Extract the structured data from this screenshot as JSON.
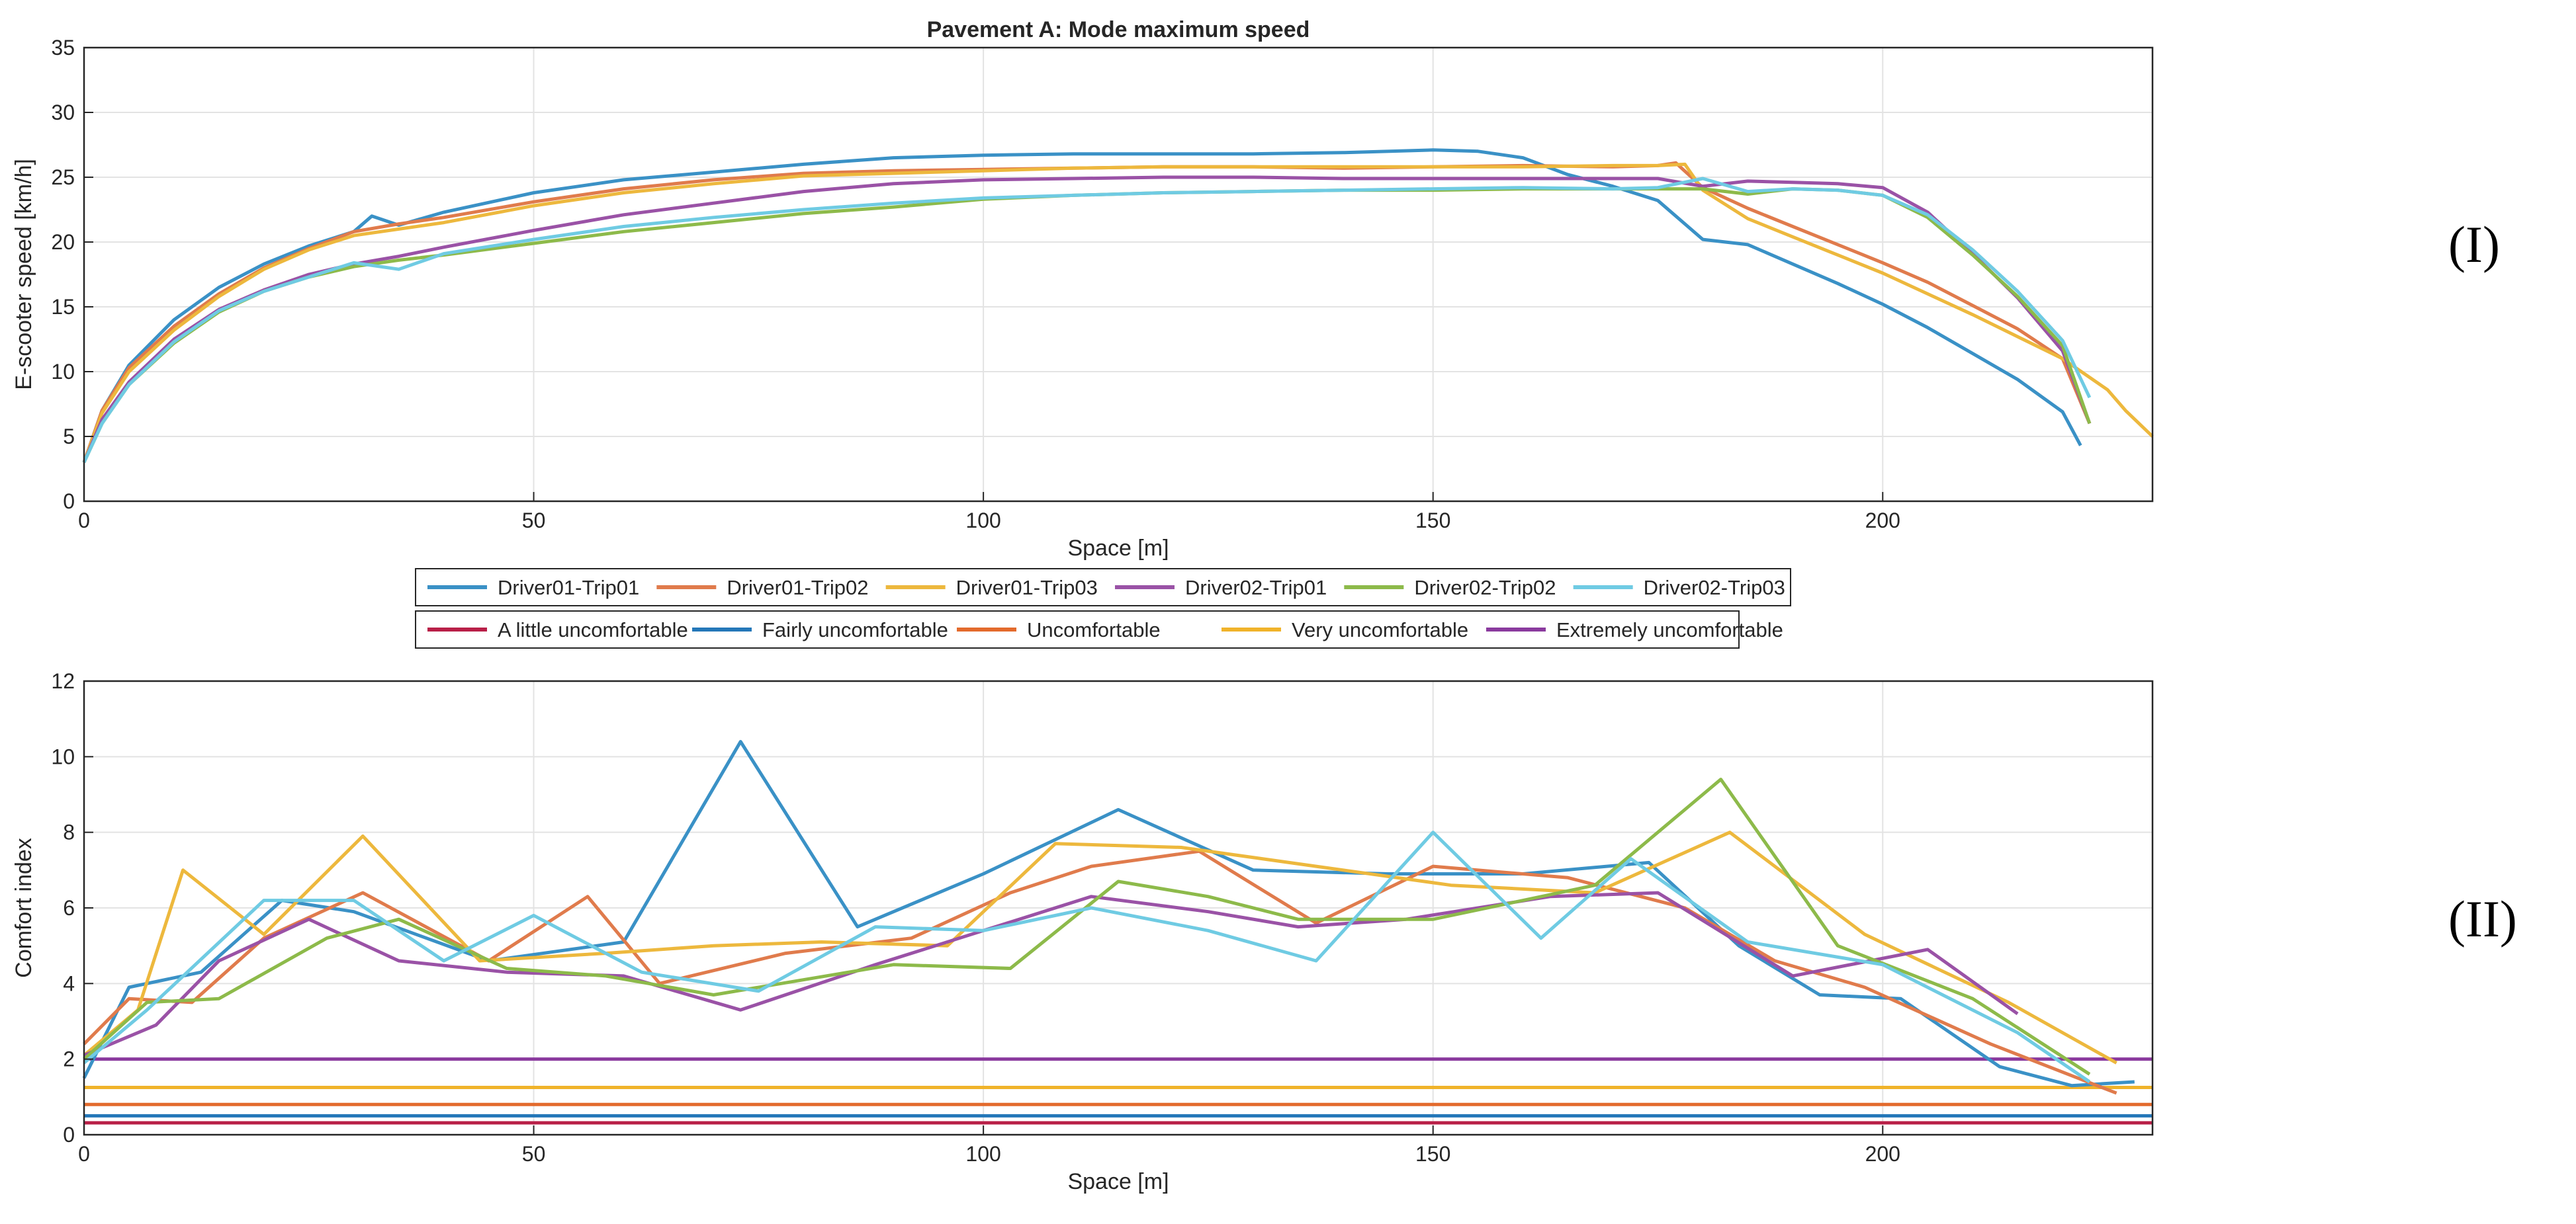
{
  "figure": {
    "label_top": "(I)",
    "label_bottom": "(II)"
  },
  "colors": {
    "d01t01": "#3a91c6",
    "d01t02": "#e07b4c",
    "d01t03": "#edb83d",
    "d02t01": "#9a52a6",
    "d02t02": "#8dba4a",
    "d02t03": "#6fcbe3",
    "a_little": "#b81f47",
    "fairly": "#2477b8",
    "uncomf": "#e36a2c",
    "very": "#f0b32a",
    "extremely": "#8a3a9e"
  },
  "legend": {
    "row1": [
      {
        "label": "Driver01-Trip01",
        "color_key": "d01t01"
      },
      {
        "label": "Driver01-Trip02",
        "color_key": "d01t02"
      },
      {
        "label": "Driver01-Trip03",
        "color_key": "d01t03"
      },
      {
        "label": "Driver02-Trip01",
        "color_key": "d02t01"
      },
      {
        "label": "Driver02-Trip02",
        "color_key": "d02t02"
      },
      {
        "label": "Driver02-Trip03",
        "color_key": "d02t03"
      }
    ],
    "row2": [
      {
        "label": "A little uncomfortable",
        "color_key": "a_little"
      },
      {
        "label": "Fairly uncomfortable",
        "color_key": "fairly"
      },
      {
        "label": "Uncomfortable",
        "color_key": "uncomf"
      },
      {
        "label": "Very uncomfortable",
        "color_key": "very"
      },
      {
        "label": "Extremely uncomfortable",
        "color_key": "extremely"
      }
    ]
  },
  "chart_data": [
    {
      "type": "line",
      "title": "Pavement A: Mode maximum speed",
      "xlabel": "Space [m]",
      "ylabel": "E-scooter speed [km/h]",
      "xlim": [
        0,
        230
      ],
      "ylim": [
        0,
        35
      ],
      "xticks": [
        0,
        50,
        100,
        150,
        200
      ],
      "yticks": [
        0,
        5,
        10,
        15,
        20,
        25,
        30,
        35
      ],
      "grid": true,
      "series": [
        {
          "name": "Driver01-Trip01",
          "color_key": "d01t01",
          "x": [
            0,
            2,
            5,
            10,
            15,
            20,
            25,
            30,
            32,
            35,
            40,
            50,
            60,
            70,
            80,
            90,
            100,
            110,
            120,
            130,
            140,
            150,
            155,
            160,
            165,
            170,
            175,
            180,
            185,
            190,
            195,
            200,
            205,
            210,
            215,
            220,
            222
          ],
          "y": [
            3,
            7,
            10.5,
            14,
            16.5,
            18.3,
            19.7,
            20.8,
            22,
            21.3,
            22.3,
            23.8,
            24.8,
            25.4,
            26,
            26.5,
            26.7,
            26.8,
            26.8,
            26.8,
            26.9,
            27.1,
            27,
            26.5,
            25.2,
            24.3,
            23.2,
            20.2,
            19.8,
            18.3,
            16.8,
            15.2,
            13.4,
            11.4,
            9.4,
            6.9,
            4.3
          ]
        },
        {
          "name": "Driver01-Trip02",
          "color_key": "d01t02",
          "x": [
            0,
            2,
            5,
            10,
            15,
            20,
            25,
            30,
            35,
            40,
            50,
            60,
            70,
            80,
            90,
            100,
            110,
            120,
            130,
            140,
            150,
            160,
            170,
            175,
            177,
            180,
            185,
            190,
            195,
            200,
            205,
            210,
            215,
            220,
            223
          ],
          "y": [
            3,
            7,
            10.3,
            13.5,
            16,
            18,
            19.5,
            20.8,
            21.4,
            21.9,
            23.1,
            24.1,
            24.8,
            25.3,
            25.5,
            25.6,
            25.7,
            25.8,
            25.8,
            25.7,
            25.8,
            25.9,
            25.8,
            25.9,
            26.1,
            24.2,
            22.6,
            21.2,
            19.8,
            18.4,
            16.9,
            15.1,
            13.3,
            11,
            6
          ]
        },
        {
          "name": "Driver01-Trip03",
          "color_key": "d01t03",
          "x": [
            0,
            2,
            5,
            10,
            15,
            20,
            25,
            30,
            35,
            40,
            50,
            60,
            70,
            80,
            90,
            100,
            110,
            120,
            130,
            140,
            150,
            160,
            170,
            175,
            178,
            180,
            185,
            190,
            195,
            200,
            205,
            210,
            215,
            220,
            225,
            227,
            230
          ],
          "y": [
            3,
            6.8,
            10,
            13.2,
            15.8,
            17.9,
            19.4,
            20.5,
            21,
            21.5,
            22.8,
            23.8,
            24.5,
            25.1,
            25.3,
            25.5,
            25.7,
            25.8,
            25.8,
            25.8,
            25.8,
            25.8,
            25.9,
            25.9,
            26,
            24,
            21.8,
            20.4,
            19,
            17.6,
            16,
            14.4,
            12.7,
            11,
            8.6,
            7,
            5
          ]
        },
        {
          "name": "Driver02-Trip01",
          "color_key": "d02t01",
          "x": [
            0,
            2,
            5,
            10,
            15,
            20,
            25,
            30,
            35,
            40,
            50,
            60,
            70,
            80,
            90,
            100,
            110,
            120,
            130,
            140,
            150,
            160,
            170,
            175,
            180,
            185,
            190,
            195,
            200,
            205,
            210,
            215,
            220,
            223
          ],
          "y": [
            3,
            6.3,
            9.2,
            12.5,
            14.8,
            16.3,
            17.5,
            18.3,
            18.9,
            19.6,
            20.9,
            22.1,
            23,
            23.9,
            24.5,
            24.8,
            24.9,
            25,
            25,
            24.9,
            24.9,
            24.9,
            24.9,
            24.9,
            24.3,
            24.7,
            24.6,
            24.5,
            24.2,
            22.3,
            19.1,
            15.7,
            11.6,
            6
          ]
        },
        {
          "name": "Driver02-Trip02",
          "color_key": "d02t02",
          "x": [
            0,
            2,
            5,
            10,
            15,
            20,
            25,
            30,
            35,
            40,
            50,
            60,
            70,
            80,
            90,
            100,
            110,
            120,
            130,
            140,
            150,
            160,
            170,
            175,
            180,
            185,
            190,
            195,
            200,
            205,
            210,
            215,
            220,
            223
          ],
          "y": [
            3,
            6,
            9,
            12.2,
            14.6,
            16.2,
            17.3,
            18.1,
            18.6,
            19,
            19.9,
            20.8,
            21.5,
            22.2,
            22.7,
            23.3,
            23.6,
            23.8,
            23.9,
            24,
            24,
            24.1,
            24.1,
            24.1,
            24.1,
            23.7,
            24.1,
            24,
            23.6,
            21.9,
            19,
            15.8,
            12,
            6
          ]
        },
        {
          "name": "Driver02-Trip03",
          "color_key": "d02t03",
          "x": [
            0,
            2,
            5,
            10,
            15,
            20,
            25,
            30,
            35,
            40,
            50,
            60,
            70,
            80,
            90,
            100,
            110,
            120,
            130,
            140,
            150,
            160,
            170,
            175,
            180,
            185,
            190,
            195,
            200,
            205,
            210,
            215,
            220,
            223
          ],
          "y": [
            3,
            6,
            9,
            12.3,
            14.7,
            16.2,
            17.3,
            18.4,
            17.9,
            19.1,
            20.2,
            21.2,
            21.9,
            22.5,
            23,
            23.4,
            23.6,
            23.8,
            23.9,
            24,
            24.1,
            24.2,
            24.1,
            24.2,
            24.9,
            23.9,
            24.1,
            24,
            23.6,
            22.1,
            19.4,
            16.2,
            12.4,
            8
          ]
        }
      ]
    },
    {
      "type": "line",
      "title": "",
      "xlabel": "Space [m]",
      "ylabel": "Comfort index",
      "xlim": [
        0,
        230
      ],
      "ylim": [
        0,
        12
      ],
      "xticks": [
        0,
        50,
        100,
        150,
        200
      ],
      "yticks": [
        0,
        2,
        4,
        6,
        8,
        10,
        12
      ],
      "grid": true,
      "series": [
        {
          "name": "Driver01-Trip01",
          "color_key": "d01t01",
          "x": [
            0,
            5,
            13,
            22,
            30,
            45,
            60,
            73,
            86,
            100,
            115,
            130,
            145,
            160,
            174,
            184,
            193,
            202,
            213,
            221,
            228
          ],
          "y": [
            1.5,
            3.9,
            4.3,
            6.2,
            5.9,
            4.6,
            5.1,
            10.4,
            5.5,
            6.9,
            8.6,
            7,
            6.9,
            6.9,
            7.2,
            5,
            3.7,
            3.6,
            1.8,
            1.3,
            1.4
          ]
        },
        {
          "name": "Driver01-Trip02",
          "color_key": "d01t02",
          "x": [
            0,
            5,
            12,
            20,
            31,
            45,
            56,
            64,
            78,
            92,
            103,
            112,
            124,
            137,
            150,
            165,
            178,
            188,
            198,
            212,
            226
          ],
          "y": [
            2.4,
            3.6,
            3.5,
            5.2,
            6.4,
            4.6,
            6.3,
            4,
            4.8,
            5.2,
            6.4,
            7.1,
            7.5,
            5.6,
            7.1,
            6.8,
            6,
            4.6,
            3.9,
            2.4,
            1.1
          ]
        },
        {
          "name": "Driver01-Trip03",
          "color_key": "d01t03",
          "x": [
            0,
            6,
            11,
            20,
            31,
            44,
            58,
            70,
            82,
            96,
            108,
            122,
            137,
            152,
            168,
            183,
            198,
            214,
            226
          ],
          "y": [
            2.1,
            3.3,
            7,
            5.3,
            7.9,
            4.6,
            4.8,
            5,
            5.1,
            5,
            7.7,
            7.6,
            7.1,
            6.6,
            6.4,
            8,
            5.3,
            3.5,
            1.9
          ]
        },
        {
          "name": "Driver02-Trip01",
          "color_key": "d02t01",
          "x": [
            0,
            8,
            15,
            25,
            35,
            47,
            60,
            73,
            88,
            100,
            112,
            125,
            135,
            147,
            163,
            175,
            190,
            205,
            215
          ],
          "y": [
            2.1,
            2.9,
            4.6,
            5.7,
            4.6,
            4.3,
            4.2,
            3.3,
            4.5,
            5.4,
            6.3,
            5.9,
            5.5,
            5.7,
            6.3,
            6.4,
            4.2,
            4.9,
            3.2
          ]
        },
        {
          "name": "Driver02-Trip02",
          "color_key": "d02t02",
          "x": [
            0,
            7,
            15,
            27,
            35,
            47,
            58,
            70,
            90,
            103,
            115,
            125,
            135,
            150,
            168,
            182,
            195,
            210,
            223
          ],
          "y": [
            2,
            3.5,
            3.6,
            5.2,
            5.7,
            4.4,
            4.2,
            3.7,
            4.5,
            4.4,
            6.7,
            6.3,
            5.7,
            5.7,
            6.6,
            9.4,
            5,
            3.6,
            1.6
          ]
        },
        {
          "name": "Driver02-Trip03",
          "color_key": "d02t03",
          "x": [
            0,
            7,
            20,
            30,
            40,
            50,
            62,
            75,
            88,
            100,
            112,
            125,
            137,
            150,
            162,
            172,
            185,
            200,
            215,
            223
          ],
          "y": [
            1.9,
            3.3,
            6.2,
            6.2,
            4.6,
            5.8,
            4.3,
            3.8,
            5.5,
            5.4,
            6,
            5.4,
            4.6,
            8,
            5.2,
            7.3,
            5.1,
            4.5,
            2.7,
            1.4
          ]
        }
      ],
      "thresholds": [
        {
          "name": "A little uncomfortable",
          "color_key": "a_little",
          "y": 0.315
        },
        {
          "name": "Fairly uncomfortable",
          "color_key": "fairly",
          "y": 0.5
        },
        {
          "name": "Uncomfortable",
          "color_key": "uncomf",
          "y": 0.8
        },
        {
          "name": "Very uncomfortable",
          "color_key": "very",
          "y": 1.25
        },
        {
          "name": "Extremely uncomfortable",
          "color_key": "extremely",
          "y": 2.0
        }
      ]
    }
  ]
}
